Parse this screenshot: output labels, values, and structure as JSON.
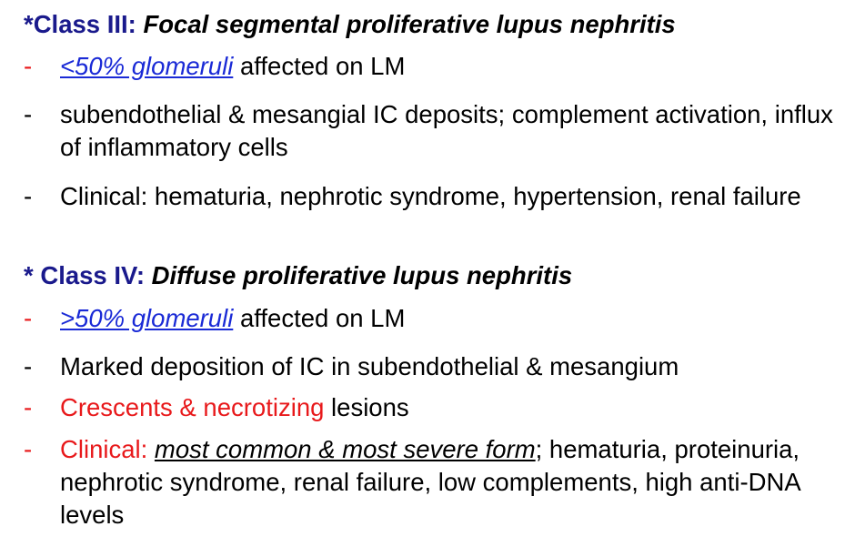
{
  "class3": {
    "label": "*Class III: ",
    "title": "Focal segmental proliferative lupus nephritis",
    "items": [
      {
        "dash": "-",
        "link": "<50% glomeruli",
        "text": " affected on LM"
      },
      {
        "dash": "-",
        "text": "subendothelial & mesangial IC deposits; complement activation, influx of inflammatory cells"
      },
      {
        "dash": "-",
        "text": "Clinical: hematuria, nephrotic syndrome, hypertension, renal failure"
      }
    ]
  },
  "class4": {
    "label": "* Class IV: ",
    "title": "Diffuse proliferative lupus nephritis",
    "items": [
      {
        "dash": "-",
        "link": ">50% glomeruli",
        "text": " affected on LM"
      },
      {
        "dash": "-",
        "text": "Marked deposition of IC in subendothelial & mesangium"
      },
      {
        "dash": "-",
        "red": "Crescents & necrotizing",
        "text": " lesions"
      },
      {
        "dash": "-",
        "red": "Clinical: ",
        "underline": "most common & most severe form",
        "text": "; hematuria, proteinuria, nephrotic syndrome, renal failure, low complements, high anti-DNA levels"
      }
    ]
  },
  "colors": {
    "heading": "#1a1a8c",
    "link": "#1a2ad6",
    "red": "#e8191b",
    "text": "#000000"
  }
}
